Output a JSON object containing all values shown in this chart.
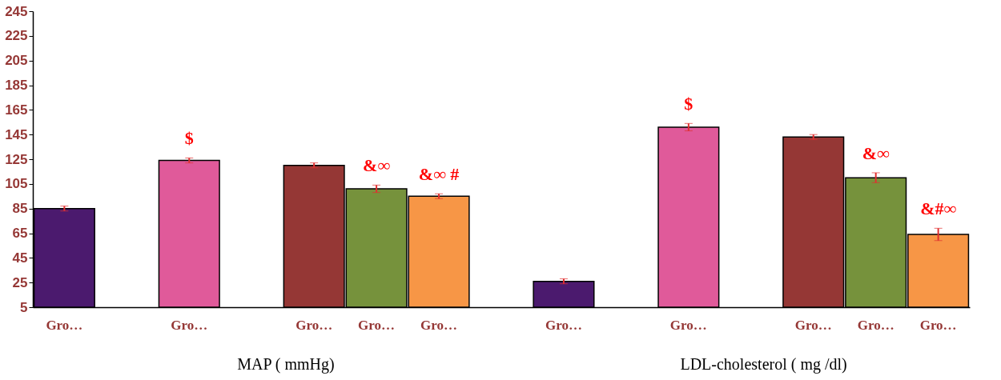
{
  "chart_data": {
    "type": "bar",
    "categories": [
      "Gro…",
      null,
      "Gro…",
      null,
      "Gro…",
      "Gro…",
      "Gro…",
      null,
      "Gro…",
      null,
      "Gro…",
      null,
      "Gro…",
      "Gro…",
      "Gro…"
    ],
    "values": [
      85,
      null,
      124,
      null,
      120,
      101,
      95,
      null,
      26,
      null,
      151,
      null,
      143,
      110,
      64
    ],
    "errors": [
      2,
      null,
      2,
      null,
      2,
      3,
      2,
      null,
      2,
      null,
      3,
      null,
      2,
      4,
      5
    ],
    "colors": [
      "#4b1a6e",
      "#ffffff",
      "#e05a9a",
      "#ffffff",
      "#953735",
      "#76923c",
      "#f79646",
      "#ffffff",
      "#4b1a6e",
      "#ffffff",
      "#e05a9a",
      "#ffffff",
      "#953735",
      "#76923c",
      "#f79646"
    ],
    "value_labels": [
      null,
      null,
      "$",
      null,
      null,
      "&∞",
      "&∞ #",
      null,
      null,
      null,
      "$",
      null,
      null,
      "&∞",
      "&#∞"
    ],
    "annotations": [
      "MAP ( mmHg)",
      "LDL-cholesterol ( mg /dl)"
    ],
    "ylim": [
      5,
      245
    ],
    "yticks": [
      5,
      25,
      45,
      65,
      85,
      105,
      125,
      145,
      165,
      185,
      205,
      225,
      245
    ],
    "grid": false
  }
}
